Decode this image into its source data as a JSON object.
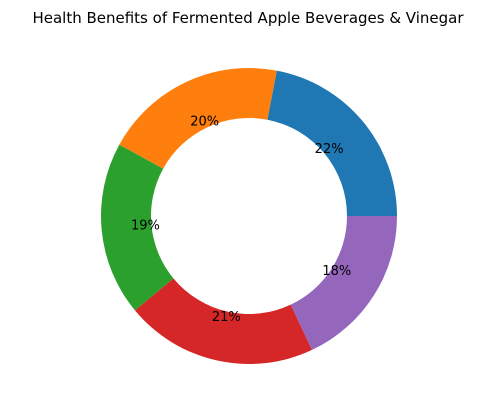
{
  "chart_data": {
    "type": "pie",
    "donut": true,
    "title": "Health Benefits of Fermented Apple Beverages & Vinegar",
    "start_angle_deg": 0,
    "direction": "counterclockwise",
    "legend": "none",
    "slices": [
      {
        "value": 22,
        "label": "22%",
        "color": "#1f77b4"
      },
      {
        "value": 20,
        "label": "20%",
        "color": "#ff7f0e"
      },
      {
        "value": 19,
        "label": "19%",
        "color": "#2ca02c"
      },
      {
        "value": 21,
        "label": "21%",
        "color": "#d62728"
      },
      {
        "value": 18,
        "label": "18%",
        "color": "#9467bd"
      }
    ]
  }
}
